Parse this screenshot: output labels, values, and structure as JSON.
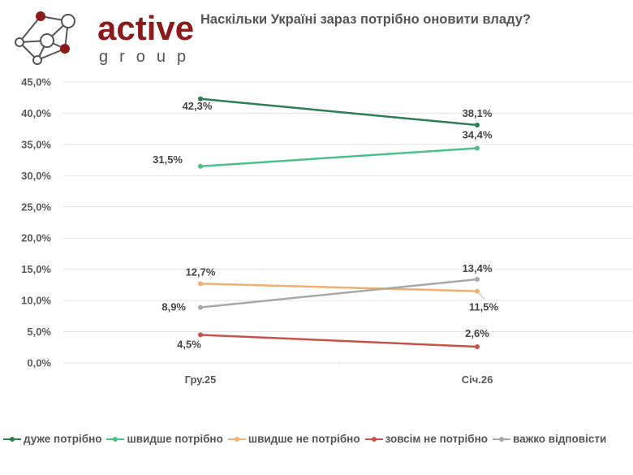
{
  "logo": {
    "word": "active",
    "sub": "group",
    "accent": "#8b1a1a"
  },
  "chart_data": {
    "type": "line",
    "title": "Наскільки Україні зараз потрібно оновити владу?",
    "categories": [
      "Гру.25",
      "Січ.26"
    ],
    "xlabel": "",
    "ylabel": "",
    "ylim": [
      0,
      45
    ],
    "yticks": [
      0,
      5,
      10,
      15,
      20,
      25,
      30,
      35,
      40,
      45
    ],
    "ytick_labels": [
      "0,0%",
      "5,0%",
      "10,0%",
      "15,0%",
      "20,0%",
      "25,0%",
      "30,0%",
      "35,0%",
      "40,0%",
      "45,0%"
    ],
    "grid": true,
    "legend_position": "bottom",
    "series": [
      {
        "name": "дуже потрібно",
        "color": "#2e7d55",
        "values": [
          42.3,
          38.1
        ],
        "labels": [
          "42,3%",
          "38,1%"
        ]
      },
      {
        "name": "швидше потрібно",
        "color": "#4cc08a",
        "values": [
          31.5,
          34.4
        ],
        "labels": [
          "31,5%",
          "34,4%"
        ]
      },
      {
        "name": "швидше не потрібно",
        "color": "#f0b070",
        "values": [
          12.7,
          11.5
        ],
        "labels": [
          "12,7%",
          "11,5%"
        ]
      },
      {
        "name": "зовсім не потрібно",
        "color": "#c8524a",
        "values": [
          4.5,
          2.6
        ],
        "labels": [
          "4,5%",
          "2,6%"
        ]
      },
      {
        "name": "важко відповісти",
        "color": "#a8a8a8",
        "values": [
          8.9,
          13.4
        ],
        "labels": [
          "8,9%",
          "13,4%"
        ]
      }
    ]
  }
}
